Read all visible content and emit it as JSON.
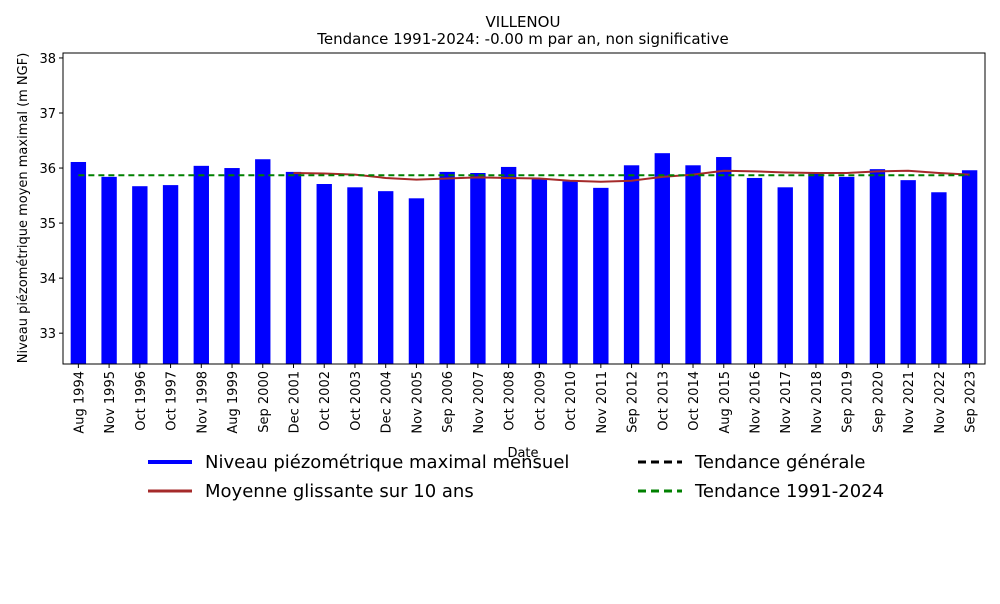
{
  "chart_data": {
    "type": "bar",
    "title": "VILLENOU",
    "subtitle": "Tendance 1991-2024: -0.00 m par an, non significative",
    "x_label": "Date",
    "y_label": "Niveau piézométrique moyen maximal (m NGF)",
    "categories": [
      "Aug 1994",
      "Nov 1995",
      "Oct 1996",
      "Oct 1997",
      "Nov 1998",
      "Aug 1999",
      "Sep 2000",
      "Dec 2001",
      "Oct 2002",
      "Oct 2003",
      "Dec 2004",
      "Nov 2005",
      "Sep 2006",
      "Nov 2007",
      "Oct 2008",
      "Oct 2009",
      "Oct 2010",
      "Nov 2011",
      "Sep 2012",
      "Oct 2013",
      "Oct 2014",
      "Aug 2015",
      "Nov 2016",
      "Nov 2017",
      "Nov 2018",
      "Sep 2019",
      "Sep 2020",
      "Nov 2021",
      "Nov 2022",
      "Sep 2023"
    ],
    "series": [
      {
        "name": "Niveau piézométrique maximal mensuel",
        "type": "bar",
        "color": "#0000ff",
        "values": [
          36.11,
          35.84,
          35.67,
          35.69,
          36.04,
          36.0,
          36.16,
          35.93,
          35.71,
          35.65,
          35.58,
          35.45,
          35.93,
          35.91,
          36.02,
          35.8,
          35.76,
          35.64,
          36.05,
          36.27,
          36.05,
          36.2,
          35.82,
          35.65,
          35.91,
          35.84,
          35.98,
          35.78,
          35.56,
          35.96
        ]
      },
      {
        "name": "Moyenne glissante sur 10 ans",
        "type": "line",
        "color": "#a52a2a",
        "dashed": false,
        "values": [
          null,
          null,
          null,
          null,
          null,
          null,
          null,
          35.91,
          35.9,
          35.88,
          35.82,
          35.79,
          35.81,
          35.83,
          35.82,
          35.81,
          35.77,
          35.75,
          35.77,
          35.84,
          35.88,
          35.95,
          35.94,
          35.92,
          35.91,
          35.91,
          35.94,
          35.95,
          35.91,
          35.88
        ]
      },
      {
        "name": "Tendance générale",
        "type": "line",
        "color": "#000000",
        "dashed": true,
        "values": [
          null,
          null,
          null,
          null,
          null,
          null,
          null,
          null,
          null,
          null,
          null,
          null,
          null,
          null,
          null,
          null,
          null,
          null,
          null,
          null,
          null,
          null,
          null,
          null,
          null,
          null,
          null,
          null,
          null,
          null
        ]
      },
      {
        "name": "Tendance 1991-2024",
        "type": "line",
        "color": "#008000",
        "dashed": true,
        "values": [
          35.87,
          35.87,
          35.87,
          35.87,
          35.87,
          35.87,
          35.87,
          35.87,
          35.87,
          35.87,
          35.87,
          35.87,
          35.87,
          35.87,
          35.87,
          35.87,
          35.87,
          35.87,
          35.87,
          35.87,
          35.87,
          35.87,
          35.87,
          35.87,
          35.87,
          35.87,
          35.87,
          35.87,
          35.87,
          35.87
        ]
      }
    ],
    "ylim": [
      32.44,
      38.09
    ],
    "yticks": [
      33,
      34,
      35,
      36,
      37,
      38
    ],
    "grid": false
  }
}
